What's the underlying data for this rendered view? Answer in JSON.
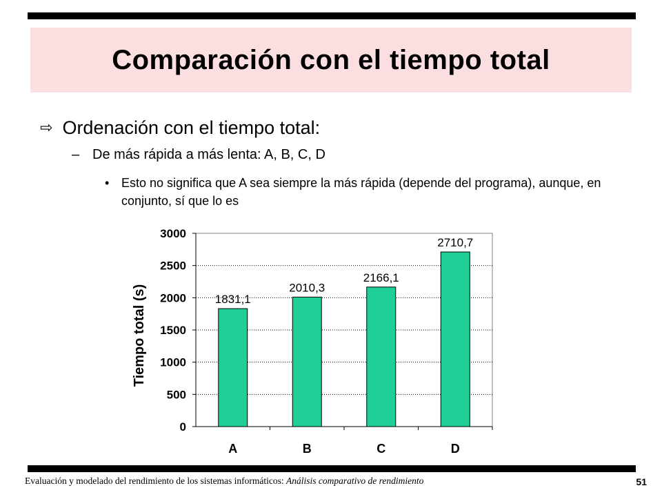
{
  "slide": {
    "title": "Comparación con el tiempo total",
    "bullet_main": "Ordenación con el tiempo total:",
    "bullet_sub": "De más rápida a más lenta: A, B, C, D",
    "bullet_detail": "Esto no significa que A sea siempre la más rápida (depende del programa), aunque, en conjunto, sí que lo es",
    "arrow_icon": "outline-right-arrow-icon",
    "footer_main": "Evaluación y modelado del rendimiento de los sistemas informáticos: ",
    "footer_italic": "Análisis comparativo de rendimiento",
    "page_number": "51",
    "title_band_color": "#fbdfe0"
  },
  "chart_data": {
    "type": "bar",
    "categories": [
      "A",
      "B",
      "C",
      "D"
    ],
    "values": [
      1831.1,
      2010.3,
      2166.1,
      2710.7
    ],
    "data_labels": [
      "1831,1",
      "2010,3",
      "2166,1",
      "2710,7"
    ],
    "ylabel": "Tiempo total (s)",
    "xlabel": "",
    "ylim": [
      0,
      3000
    ],
    "yticks": [
      0,
      500,
      1000,
      1500,
      2000,
      2500,
      3000
    ],
    "grid": true,
    "grid_style": "dotted",
    "bar_color": "#1fcf98",
    "legend": "none"
  }
}
